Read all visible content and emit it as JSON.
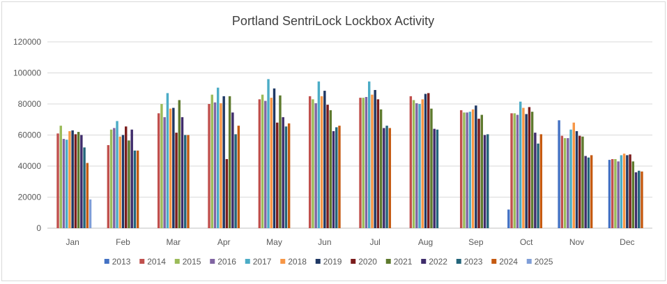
{
  "chart_data": {
    "type": "bar",
    "title": "Portland SentriLock Lockbox Activity",
    "xlabel": "",
    "ylabel": "",
    "ylim": [
      0,
      120000
    ],
    "yticks": [
      0,
      20000,
      40000,
      60000,
      80000,
      100000,
      120000
    ],
    "grid": true,
    "legend_position": "bottom",
    "categories": [
      "Jan",
      "Feb",
      "Mar",
      "Apr",
      "May",
      "Jun",
      "Jul",
      "Aug",
      "Sep",
      "Oct",
      "Nov",
      "Dec"
    ],
    "series": [
      {
        "name": "2013",
        "color": "#4472C4",
        "values": [
          null,
          null,
          null,
          null,
          null,
          null,
          null,
          null,
          null,
          12000,
          69500,
          44000
        ]
      },
      {
        "name": "2014",
        "color": "#C0504D",
        "values": [
          61000,
          53500,
          74000,
          80000,
          83000,
          85000,
          84000,
          85000,
          76000,
          74000,
          59500,
          44500
        ]
      },
      {
        "name": "2015",
        "color": "#9BBB59",
        "values": [
          66000,
          63500,
          80000,
          86000,
          86000,
          83000,
          84000,
          82500,
          74500,
          74000,
          58000,
          44500
        ]
      },
      {
        "name": "2016",
        "color": "#8064A2",
        "values": [
          57500,
          64500,
          71500,
          81000,
          82000,
          80500,
          84500,
          80500,
          74500,
          73000,
          58000,
          43000
        ]
      },
      {
        "name": "2017",
        "color": "#4BACC6",
        "values": [
          57000,
          69000,
          87000,
          90500,
          96000,
          94500,
          94500,
          80000,
          75000,
          81500,
          63500,
          47000
        ]
      },
      {
        "name": "2018",
        "color": "#F79646",
        "values": [
          62500,
          59000,
          77000,
          80500,
          84000,
          85000,
          86000,
          83000,
          76500,
          77500,
          68000,
          48000
        ]
      },
      {
        "name": "2019",
        "color": "#1F3864",
        "values": [
          63000,
          60000,
          77500,
          85000,
          90000,
          88500,
          89000,
          86500,
          79000,
          73500,
          62500,
          47000
        ]
      },
      {
        "name": "2020",
        "color": "#7B1C1C",
        "values": [
          60500,
          65500,
          61500,
          44500,
          68000,
          79500,
          83000,
          87000,
          70500,
          78000,
          59500,
          47500
        ]
      },
      {
        "name": "2021",
        "color": "#5E7A2E",
        "values": [
          62000,
          56500,
          82500,
          85000,
          85500,
          76000,
          76500,
          77000,
          73000,
          75000,
          59000,
          43000
        ]
      },
      {
        "name": "2022",
        "color": "#3F2C6B",
        "values": [
          60000,
          63500,
          71500,
          74500,
          71500,
          62500,
          64500,
          64000,
          60000,
          61500,
          46500,
          36000
        ]
      },
      {
        "name": "2023",
        "color": "#23657A",
        "values": [
          52000,
          50000,
          60000,
          60500,
          65500,
          65000,
          66000,
          63500,
          60500,
          54500,
          45500,
          37000
        ]
      },
      {
        "name": "2024",
        "color": "#C55A11",
        "values": [
          42000,
          50000,
          60000,
          66000,
          67500,
          66000,
          64500,
          null,
          null,
          60500,
          47000,
          36500
        ]
      },
      {
        "name": "2025",
        "color": "#7F9ED8",
        "values": [
          18500,
          null,
          null,
          null,
          null,
          null,
          null,
          null,
          null,
          null,
          null,
          null
        ]
      }
    ]
  }
}
